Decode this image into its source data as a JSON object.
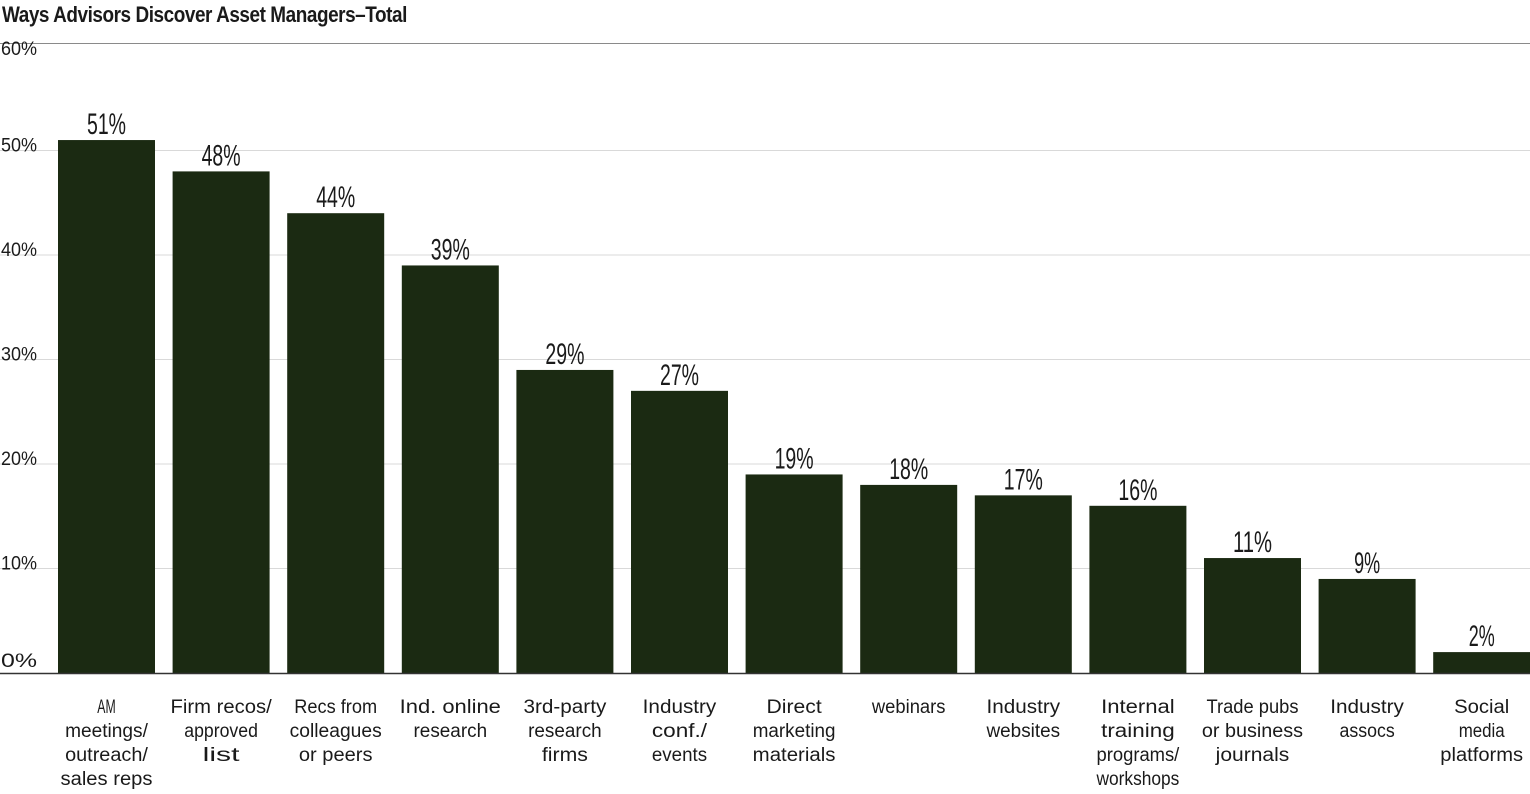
{
  "chart_data": {
    "type": "bar",
    "title": "Ways Advisors Discover Asset Managers–Total",
    "ylim": [
      0,
      60
    ],
    "yticks": [
      "0%",
      "10%",
      "20%",
      "30%",
      "40%",
      "50%",
      "60%"
    ],
    "grid": true,
    "bar_color": "#1b2a12",
    "categories": [
      "AM meetings/ outreach/ sales reps",
      "Firm recos/ approved list",
      "Recs from colleagues or peers",
      "Ind. online research",
      "3rd-party research firms",
      "Industry conf./ events",
      "Direct marketing materials",
      "webinars",
      "Industry websites",
      "Internal training programs/ workshops",
      "Trade pubs or business journals",
      "Industry assocs",
      "Social media platforms"
    ],
    "category_lines": [
      [
        "AM",
        "meetings/",
        "outreach/",
        "sales reps"
      ],
      [
        "Firm recos/",
        "approved",
        "list"
      ],
      [
        "Recs from",
        "colleagues",
        "or peers"
      ],
      [
        "Ind. online",
        "research"
      ],
      [
        "3rd-party",
        "research",
        "firms"
      ],
      [
        "Industry",
        "conf./",
        "events"
      ],
      [
        "Direct",
        "marketing",
        "materials"
      ],
      [
        "webinars"
      ],
      [
        "Industry",
        "websites"
      ],
      [
        "Internal",
        "training",
        "programs/",
        "workshops"
      ],
      [
        "Trade pubs",
        "or business",
        "journals"
      ],
      [
        "Industry",
        "assocs"
      ],
      [
        "Social",
        "media",
        "platforms"
      ]
    ],
    "values": [
      51,
      48,
      44,
      39,
      29,
      27,
      19,
      18,
      17,
      16,
      11,
      9,
      2
    ],
    "data_labels": [
      "51%",
      "48%",
      "44%",
      "39%",
      "29%",
      "27%",
      "19%",
      "18%",
      "17%",
      "16%",
      "11%",
      "9%",
      "2%"
    ]
  }
}
